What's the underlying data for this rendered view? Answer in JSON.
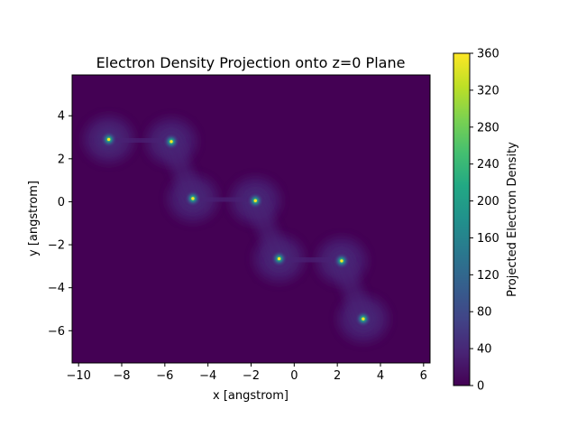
{
  "chart_data": {
    "type": "heatmap",
    "title": "Electron Density Projection onto z=0 Plane",
    "xlabel": "x [angstrom]",
    "ylabel": "y [angstrom]",
    "colorbar_label": "Projected Electron Density",
    "xlim": [
      -10.3,
      6.3
    ],
    "ylim": [
      -7.5,
      5.9
    ],
    "xticks": [
      -10,
      -8,
      -6,
      -4,
      -2,
      0,
      2,
      4,
      6
    ],
    "yticks": [
      -6,
      -4,
      -2,
      0,
      2,
      4
    ],
    "colorbar_range": [
      0,
      360
    ],
    "colorbar_ticks": [
      0,
      40,
      80,
      120,
      160,
      200,
      240,
      280,
      320,
      360
    ],
    "colormap": "viridis",
    "background_color": "#440154",
    "atoms": [
      {
        "x": -8.6,
        "y": 2.9
      },
      {
        "x": -5.7,
        "y": 2.8
      },
      {
        "x": -4.7,
        "y": 0.15
      },
      {
        "x": -1.8,
        "y": 0.05
      },
      {
        "x": -0.7,
        "y": -2.65
      },
      {
        "x": 2.2,
        "y": -2.75
      },
      {
        "x": 3.2,
        "y": -5.45
      }
    ]
  }
}
